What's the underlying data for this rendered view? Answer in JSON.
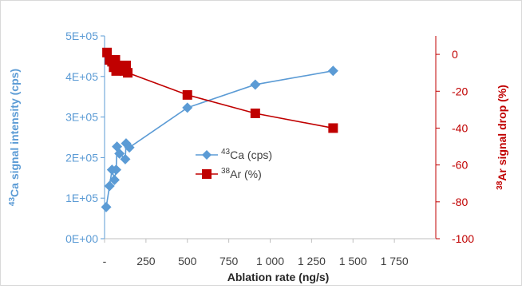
{
  "chart_data": {
    "type": "scatter",
    "xlabel": "Ablation rate (ng/s)",
    "ylabel_left_sup": "43",
    "ylabel_left": "Ca signal intensity (cps)",
    "ylabel_right_sup": "38",
    "ylabel_right": "Ar signal drop (%)",
    "xlim": [
      -250,
      1750
    ],
    "ylim_left": [
      0,
      500000
    ],
    "ylim_right": [
      -100,
      10
    ],
    "x_ticks": [
      {
        "value": -250,
        "label": "-"
      },
      {
        "value": 0,
        "label": "250"
      },
      {
        "value": 250,
        "label": "500"
      },
      {
        "value": 500,
        "label": "750"
      },
      {
        "value": 750,
        "label": "1 000"
      },
      {
        "value": 1000,
        "label": "1 250"
      },
      {
        "value": 1250,
        "label": "1 500"
      },
      {
        "value": 1500,
        "label": "1 750"
      }
    ],
    "x_tick_labels": [
      "-",
      "250",
      "500",
      "750",
      "1 000",
      "1 250",
      "1 500",
      "1 750"
    ],
    "y_left_ticks": [
      {
        "value": 0,
        "label": "0E+00"
      },
      {
        "value": 100000,
        "label": "1E+05"
      },
      {
        "value": 200000,
        "label": "2E+05"
      },
      {
        "value": 300000,
        "label": "3E+05"
      },
      {
        "value": 400000,
        "label": "4E+05"
      },
      {
        "value": 500000,
        "label": "5E+05"
      }
    ],
    "y_left_tick_labels": [
      "0E+00",
      "1E+05",
      "2E+05",
      "3E+05",
      "4E+05",
      "5E+05"
    ],
    "y_right_ticks": [
      {
        "value": -100,
        "label": "-100"
      },
      {
        "value": -80,
        "label": "-80"
      },
      {
        "value": -60,
        "label": "-60"
      },
      {
        "value": -40,
        "label": "-40"
      },
      {
        "value": -20,
        "label": "-20"
      },
      {
        "value": 0,
        "label": "0"
      }
    ],
    "y_right_tick_labels": [
      "-100",
      "-80",
      "-60",
      "-40",
      "-20",
      "0"
    ],
    "series": [
      {
        "name_sup": "43",
        "name": "Ca (cps)",
        "axis": "left",
        "color": "#5b9bd5",
        "marker": "diamond",
        "x": [
          -240,
          -220,
          -205,
          -190,
          -180,
          -175,
          -160,
          -125,
          -120,
          -100
        ],
        "y": [
          78000,
          130000,
          170000,
          145000,
          170000,
          227000,
          210000,
          196000,
          235000,
          225000
        ],
        "x_curve": [
          -240,
          -220,
          -205,
          -190,
          -180,
          -175,
          -160,
          -125,
          -120,
          -100,
          250,
          660,
          1130
        ],
        "y_curve": [
          78000,
          130000,
          170000,
          145000,
          170000,
          227000,
          210000,
          196000,
          235000,
          225000,
          323000,
          380000,
          414000
        ],
        "x_end": [
          250,
          660,
          1130
        ],
        "y_end": [
          323000,
          380000,
          414000
        ]
      },
      {
        "name_sup": "38",
        "name": "Ar (%)",
        "axis": "right",
        "color": "#c00000",
        "marker": "square",
        "x": [
          -235,
          -220,
          -205,
          -195,
          -185,
          -180,
          -175,
          -130,
          -120,
          -110,
          250,
          660,
          1130
        ],
        "y": [
          1,
          -3,
          -4,
          -7,
          -3,
          -9,
          -6,
          -9,
          -6,
          -10,
          -22,
          -32,
          -40
        ]
      }
    ]
  }
}
